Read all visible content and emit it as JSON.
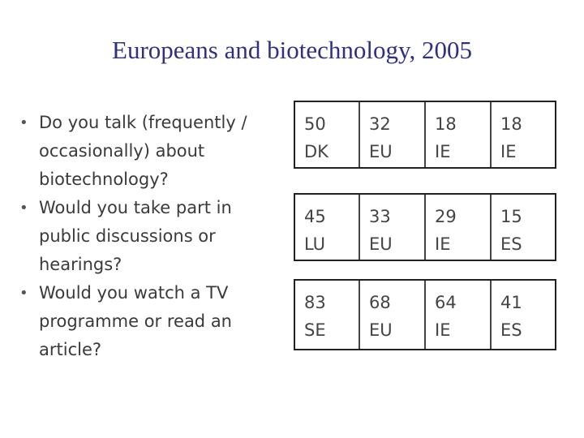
{
  "title": "Europeans and biotechnology, 2005",
  "bullet_glyph": "•",
  "bullets": [
    "Do you talk (frequently / occasionally) about biotechnology?",
    "Would you take part in public discussions or hearings?",
    "Would you watch a TV programme or read an article?"
  ],
  "table": {
    "rows": [
      [
        {
          "value": "50",
          "code": "DK"
        },
        {
          "value": "32",
          "code": "EU"
        },
        {
          "value": "18",
          "code": "IE"
        },
        {
          "value": "18",
          "code": "IE"
        }
      ],
      [
        {
          "value": "45",
          "code": "LU"
        },
        {
          "value": "33",
          "code": "EU"
        },
        {
          "value": "29",
          "code": "IE"
        },
        {
          "value": "15",
          "code": "ES"
        }
      ],
      [
        {
          "value": "83",
          "code": "SE"
        },
        {
          "value": "68",
          "code": "EU"
        },
        {
          "value": "64",
          "code": "IE"
        },
        {
          "value": "41",
          "code": "ES"
        }
      ]
    ]
  },
  "colors": {
    "title": "#2f3180",
    "text": "#3a3a3a"
  }
}
